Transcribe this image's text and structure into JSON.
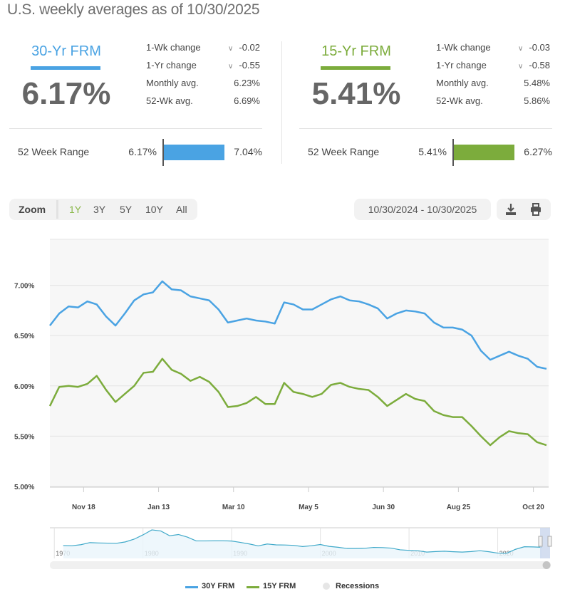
{
  "title": "U.S. weekly averages as of 10/30/2025",
  "products": [
    {
      "name": "30-Yr FRM",
      "rate": "6.17%",
      "color": "#4aa3e3",
      "stats": [
        {
          "label": "1-Wk change",
          "value": "-0.02",
          "arrow": "chevron-down"
        },
        {
          "label": "1-Yr change",
          "value": "-0.55",
          "arrow": "chevron-down"
        },
        {
          "label": "Monthly avg.",
          "value": "6.23%"
        },
        {
          "label": "52-Wk avg.",
          "value": "6.69%"
        }
      ],
      "range": {
        "label": "52 Week Range",
        "low": "6.17%",
        "high": "7.04%"
      }
    },
    {
      "name": "15-Yr FRM",
      "rate": "5.41%",
      "color": "#7cac3c",
      "stats": [
        {
          "label": "1-Wk change",
          "value": "-0.03",
          "arrow": "chevron-down"
        },
        {
          "label": "1-Yr change",
          "value": "-0.58",
          "arrow": "chevron-down"
        },
        {
          "label": "Monthly avg.",
          "value": "5.48%"
        },
        {
          "label": "52-Wk avg.",
          "value": "5.86%"
        }
      ],
      "range": {
        "label": "52 Week Range",
        "low": "5.41%",
        "high": "6.27%"
      }
    }
  ],
  "toolbar": {
    "zoom_label": "Zoom",
    "zoom_options": [
      "1Y",
      "3Y",
      "5Y",
      "10Y",
      "All"
    ],
    "selected": "1Y",
    "date_range": "10/30/2024 - 10/30/2025",
    "icons": [
      "download-icon",
      "print-icon"
    ]
  },
  "chart_data": {
    "type": "line",
    "ylim": [
      5.0,
      7.5
    ],
    "yticks": [
      "5.00%",
      "5.50%",
      "6.00%",
      "6.50%",
      "7.00%"
    ],
    "ytick_values": [
      5.0,
      5.5,
      6.0,
      6.5,
      7.0
    ],
    "xticks": [
      "Nov 18",
      "Jan 13",
      "Mar 10",
      "May 5",
      "Jun 30",
      "Aug 25",
      "Oct 20"
    ],
    "xtick_week_index": [
      3.6,
      11.6,
      19.6,
      27.6,
      35.6,
      43.6,
      51.6
    ],
    "grid": true,
    "series": [
      {
        "name": "30Y FRM",
        "color": "#4aa3e3",
        "values": [
          6.6,
          6.72,
          6.79,
          6.78,
          6.84,
          6.81,
          6.69,
          6.6,
          6.72,
          6.85,
          6.91,
          6.93,
          7.04,
          6.96,
          6.95,
          6.89,
          6.87,
          6.85,
          6.76,
          6.63,
          6.65,
          6.67,
          6.65,
          6.64,
          6.62,
          6.83,
          6.81,
          6.76,
          6.76,
          6.81,
          6.86,
          6.89,
          6.85,
          6.84,
          6.81,
          6.77,
          6.67,
          6.72,
          6.75,
          6.74,
          6.72,
          6.63,
          6.58,
          6.58,
          6.56,
          6.5,
          6.35,
          6.26,
          6.3,
          6.34,
          6.3,
          6.27,
          6.19,
          6.17
        ]
      },
      {
        "name": "15Y FRM",
        "color": "#7cac3c",
        "values": [
          5.8,
          5.99,
          6.0,
          5.99,
          6.02,
          6.1,
          5.96,
          5.84,
          5.92,
          6.0,
          6.13,
          6.14,
          6.27,
          6.16,
          6.12,
          6.05,
          6.09,
          6.04,
          5.94,
          5.79,
          5.8,
          5.83,
          5.89,
          5.82,
          5.82,
          6.03,
          5.94,
          5.92,
          5.89,
          5.92,
          6.01,
          6.03,
          5.99,
          5.97,
          5.96,
          5.89,
          5.8,
          5.86,
          5.92,
          5.87,
          5.85,
          5.75,
          5.71,
          5.69,
          5.69,
          5.6,
          5.5,
          5.41,
          5.49,
          5.55,
          5.53,
          5.52,
          5.44,
          5.41
        ]
      }
    ],
    "navigator": {
      "xticks": [
        "1970",
        "1980",
        "1990",
        "2000",
        "2010",
        "2020"
      ],
      "years": [
        1971,
        1972,
        1973,
        1974,
        1975,
        1976,
        1977,
        1978,
        1979,
        1980,
        1981,
        1982,
        1983,
        1984,
        1985,
        1986,
        1987,
        1988,
        1989,
        1990,
        1991,
        1992,
        1993,
        1994,
        1995,
        1996,
        1997,
        1998,
        1999,
        2000,
        2001,
        2002,
        2003,
        2004,
        2005,
        2006,
        2007,
        2008,
        2009,
        2010,
        2011,
        2012,
        2013,
        2014,
        2015,
        2016,
        2017,
        2018,
        2019,
        2020,
        2021,
        2022,
        2023,
        2024,
        2025
      ],
      "values": [
        7.5,
        7.4,
        8.0,
        9.2,
        9.0,
        8.9,
        8.8,
        9.6,
        11.2,
        13.7,
        16.6,
        16.0,
        13.2,
        13.9,
        12.4,
        10.2,
        10.2,
        10.3,
        10.3,
        10.1,
        9.3,
        8.4,
        7.3,
        8.4,
        7.9,
        7.8,
        7.6,
        6.9,
        7.4,
        8.1,
        7.0,
        6.5,
        5.8,
        5.8,
        5.9,
        6.4,
        6.3,
        6.0,
        5.0,
        4.7,
        4.5,
        3.7,
        4.0,
        4.2,
        3.9,
        3.7,
        4.0,
        4.5,
        3.9,
        3.1,
        3.0,
        5.3,
        6.8,
        6.7,
        6.5
      ]
    }
  },
  "legend": [
    {
      "label": "30Y FRM",
      "color": "#4aa3e3"
    },
    {
      "label": "15Y FRM",
      "color": "#7cac3c"
    },
    {
      "label": "Recessions",
      "color": "#e6e6e6"
    }
  ]
}
